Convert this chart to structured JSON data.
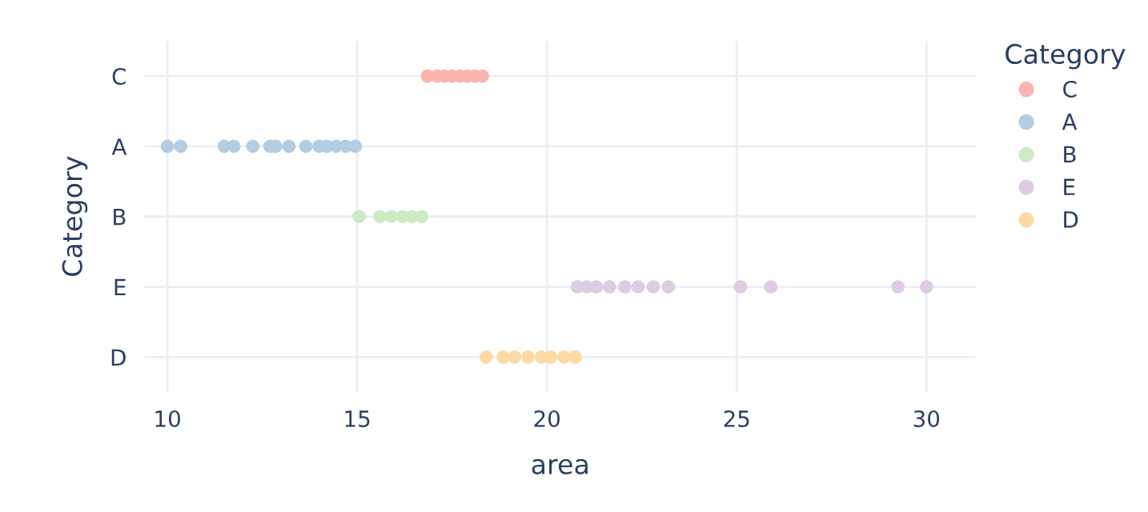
{
  "chart_data": {
    "type": "scatter",
    "orientation": "horizontal",
    "xlabel": "area",
    "ylabel": "Category",
    "legend_title": "Category",
    "categories": [
      "C",
      "A",
      "B",
      "E",
      "D"
    ],
    "series": [
      {
        "name": "C",
        "color": "#fbb4ae",
        "x": [
          "C",
          "C",
          "C",
          "C",
          "C",
          "C",
          "C",
          "C"
        ],
        "values": [
          16.85,
          17.1,
          17.3,
          17.5,
          17.7,
          17.9,
          18.1,
          18.3
        ]
      },
      {
        "name": "A",
        "color": "#b3cde3",
        "x": [
          "A",
          "A",
          "A",
          "A",
          "A",
          "A",
          "A",
          "A",
          "A",
          "A",
          "A",
          "A",
          "A",
          "A"
        ],
        "values": [
          10.0,
          10.35,
          11.5,
          11.75,
          12.25,
          12.7,
          12.85,
          13.2,
          13.65,
          14.0,
          14.2,
          14.45,
          14.7,
          14.95
        ]
      },
      {
        "name": "B",
        "color": "#ccebc5",
        "x": [
          "B",
          "B",
          "B",
          "B",
          "B",
          "B"
        ],
        "values": [
          15.05,
          15.6,
          15.9,
          16.2,
          16.45,
          16.7
        ]
      },
      {
        "name": "E",
        "color": "#decbe4",
        "x": [
          "E",
          "E",
          "E",
          "E",
          "E",
          "E",
          "E",
          "E",
          "E",
          "E",
          "E",
          "E"
        ],
        "values": [
          20.8,
          21.05,
          21.3,
          21.65,
          22.05,
          22.4,
          22.8,
          23.2,
          25.1,
          25.9,
          29.25,
          30.0
        ]
      },
      {
        "name": "D",
        "color": "#fed9a6",
        "x": [
          "D",
          "D",
          "D",
          "D",
          "D",
          "D",
          "D",
          "D"
        ],
        "values": [
          18.4,
          18.85,
          19.15,
          19.5,
          19.85,
          20.1,
          20.45,
          20.75
        ]
      }
    ],
    "xlim": [
      9.4,
      31.3
    ],
    "xticks": [
      10,
      15,
      20,
      25,
      30
    ],
    "grid": true,
    "legend": "right",
    "marker": "circle"
  }
}
